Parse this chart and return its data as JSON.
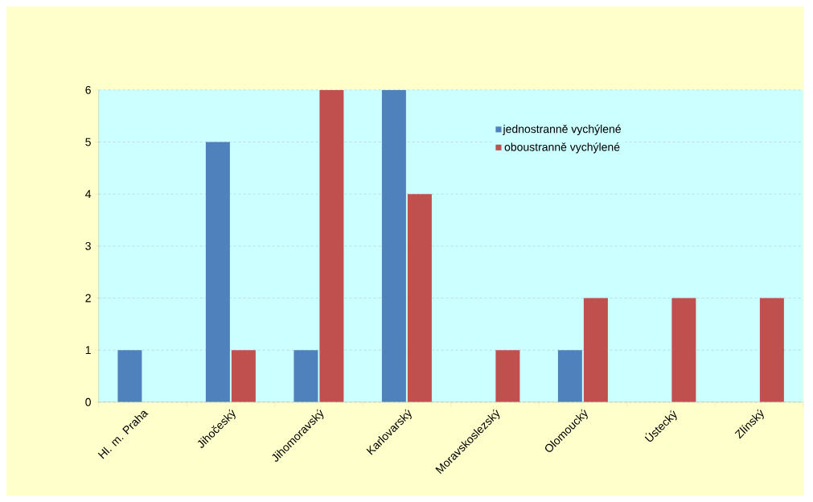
{
  "chart_data": {
    "type": "bar",
    "categories": [
      "Hl. m. Praha",
      "Jihočeský",
      "Jihomoravský",
      "Karlovarský",
      "Moravskoslezský",
      "Olomoucký",
      "Ústecký",
      "Zlínský"
    ],
    "series": [
      {
        "name": "jednostranně vychýlené",
        "color": "#4f81bd",
        "values": [
          1,
          5,
          1,
          6,
          0,
          1,
          0,
          0
        ]
      },
      {
        "name": "oboustranně vychýlené",
        "color": "#c0504d",
        "values": [
          0,
          1,
          6,
          4,
          1,
          2,
          2,
          2
        ]
      }
    ],
    "ylim": [
      0,
      6
    ],
    "yticks": [
      0,
      1,
      2,
      3,
      4,
      5,
      6
    ],
    "grid": "y",
    "legend": "top right"
  }
}
